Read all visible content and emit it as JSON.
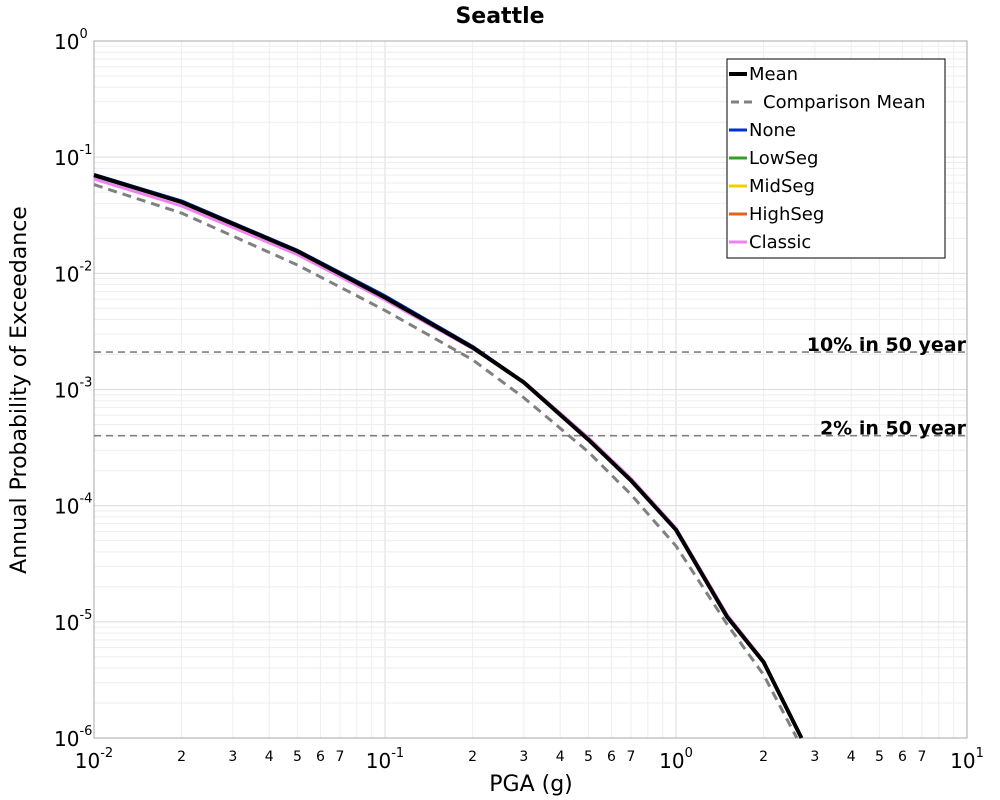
{
  "chart_data": {
    "type": "line",
    "title": "Seattle",
    "xlabel": "PGA (g)",
    "ylabel": "Annual Probability of Exceedance",
    "xscale": "log",
    "yscale": "log",
    "xlim": [
      0.01,
      10
    ],
    "ylim": [
      1e-06,
      1
    ],
    "grid": true,
    "legend_position": "top-right",
    "series": [
      {
        "name": "Mean",
        "color": "#000000",
        "style": "solid",
        "x": [
          0.01,
          0.02,
          0.05,
          0.1,
          0.2,
          0.3,
          0.5,
          0.7,
          1.0,
          1.5,
          2.0,
          2.7
        ],
        "y": [
          0.07,
          0.041,
          0.0155,
          0.0062,
          0.0023,
          0.00115,
          0.00037,
          0.000165,
          6.2e-05,
          1.1e-05,
          4.5e-06,
          1e-06
        ]
      },
      {
        "name": "Comparison Mean",
        "color": "#808080",
        "style": "dashed",
        "x": [
          0.01,
          0.02,
          0.05,
          0.1,
          0.2,
          0.3,
          0.5,
          0.7,
          1.0,
          1.5,
          2.0,
          2.6
        ],
        "y": [
          0.058,
          0.033,
          0.0118,
          0.0048,
          0.0018,
          0.00085,
          0.00029,
          0.000125,
          4.5e-05,
          9.5e-06,
          3.5e-06,
          1e-06
        ]
      },
      {
        "name": "None",
        "color": "#0033cc",
        "style": "solid",
        "x": [
          0.01,
          0.02,
          0.05,
          0.1,
          0.2,
          0.3,
          0.5,
          0.7,
          1.0,
          1.5,
          2.0,
          2.7
        ],
        "y": [
          0.071,
          0.042,
          0.0158,
          0.0064,
          0.00235,
          0.00116,
          0.00037,
          0.000165,
          6.2e-05,
          1.1e-05,
          4.5e-06,
          1e-06
        ]
      },
      {
        "name": "LowSeg",
        "color": "#33a02c",
        "style": "solid",
        "x": [
          0.01,
          0.02,
          0.05,
          0.1,
          0.2,
          0.3,
          0.5,
          0.7,
          1.0,
          1.5,
          2.0,
          2.7
        ],
        "y": [
          0.07,
          0.041,
          0.0155,
          0.0062,
          0.0023,
          0.00115,
          0.00037,
          0.000165,
          6.2e-05,
          1.1e-05,
          4.5e-06,
          1e-06
        ]
      },
      {
        "name": "MidSeg",
        "color": "#f0d000",
        "style": "solid",
        "x": [
          0.01,
          0.02,
          0.05,
          0.1,
          0.2,
          0.3,
          0.5,
          0.7,
          1.0,
          1.5,
          2.0,
          2.7
        ],
        "y": [
          0.07,
          0.041,
          0.0155,
          0.0062,
          0.0023,
          0.00115,
          0.00037,
          0.000165,
          6.2e-05,
          1.1e-05,
          4.5e-06,
          1e-06
        ]
      },
      {
        "name": "HighSeg",
        "color": "#e8601c",
        "style": "solid",
        "x": [
          0.01,
          0.02,
          0.05,
          0.1,
          0.2,
          0.3,
          0.5,
          0.7,
          1.0,
          1.5,
          2.0,
          2.7
        ],
        "y": [
          0.07,
          0.041,
          0.0155,
          0.0062,
          0.0023,
          0.00115,
          0.00037,
          0.000165,
          6.2e-05,
          1.1e-05,
          4.5e-06,
          1e-06
        ]
      },
      {
        "name": "Classic",
        "color": "#ee82ee",
        "style": "solid",
        "x": [
          0.01,
          0.02,
          0.05,
          0.1,
          0.2,
          0.3,
          0.5,
          0.7,
          1.0,
          1.5,
          2.0,
          2.7
        ],
        "y": [
          0.065,
          0.038,
          0.0145,
          0.0059,
          0.00225,
          0.00117,
          0.000385,
          0.000172,
          6.4e-05,
          1.15e-05,
          4.6e-06,
          1e-06
        ]
      }
    ],
    "reference_lines": [
      {
        "label": "10% in 50 year",
        "y": 0.0021,
        "color": "#808080"
      },
      {
        "label": "2% in 50 year",
        "y": 0.0004,
        "color": "#808080"
      }
    ],
    "x_major_ticks": [
      {
        "value": 0.01,
        "base": "10",
        "exp": "-2"
      },
      {
        "value": 0.1,
        "base": "10",
        "exp": "-1"
      },
      {
        "value": 1,
        "base": "10",
        "exp": "0"
      },
      {
        "value": 10,
        "base": "10",
        "exp": "1"
      }
    ],
    "x_minor_tick_labels": [
      "2",
      "3",
      "4",
      "5",
      "6",
      "7"
    ],
    "y_major_ticks": [
      {
        "value": 1,
        "base": "10",
        "exp": "0"
      },
      {
        "value": 0.1,
        "base": "10",
        "exp": "-1"
      },
      {
        "value": 0.01,
        "base": "10",
        "exp": "-2"
      },
      {
        "value": 0.001,
        "base": "10",
        "exp": "-3"
      },
      {
        "value": 0.0001,
        "base": "10",
        "exp": "-4"
      },
      {
        "value": 1e-05,
        "base": "10",
        "exp": "-5"
      },
      {
        "value": 1e-06,
        "base": "10",
        "exp": "-6"
      }
    ]
  }
}
